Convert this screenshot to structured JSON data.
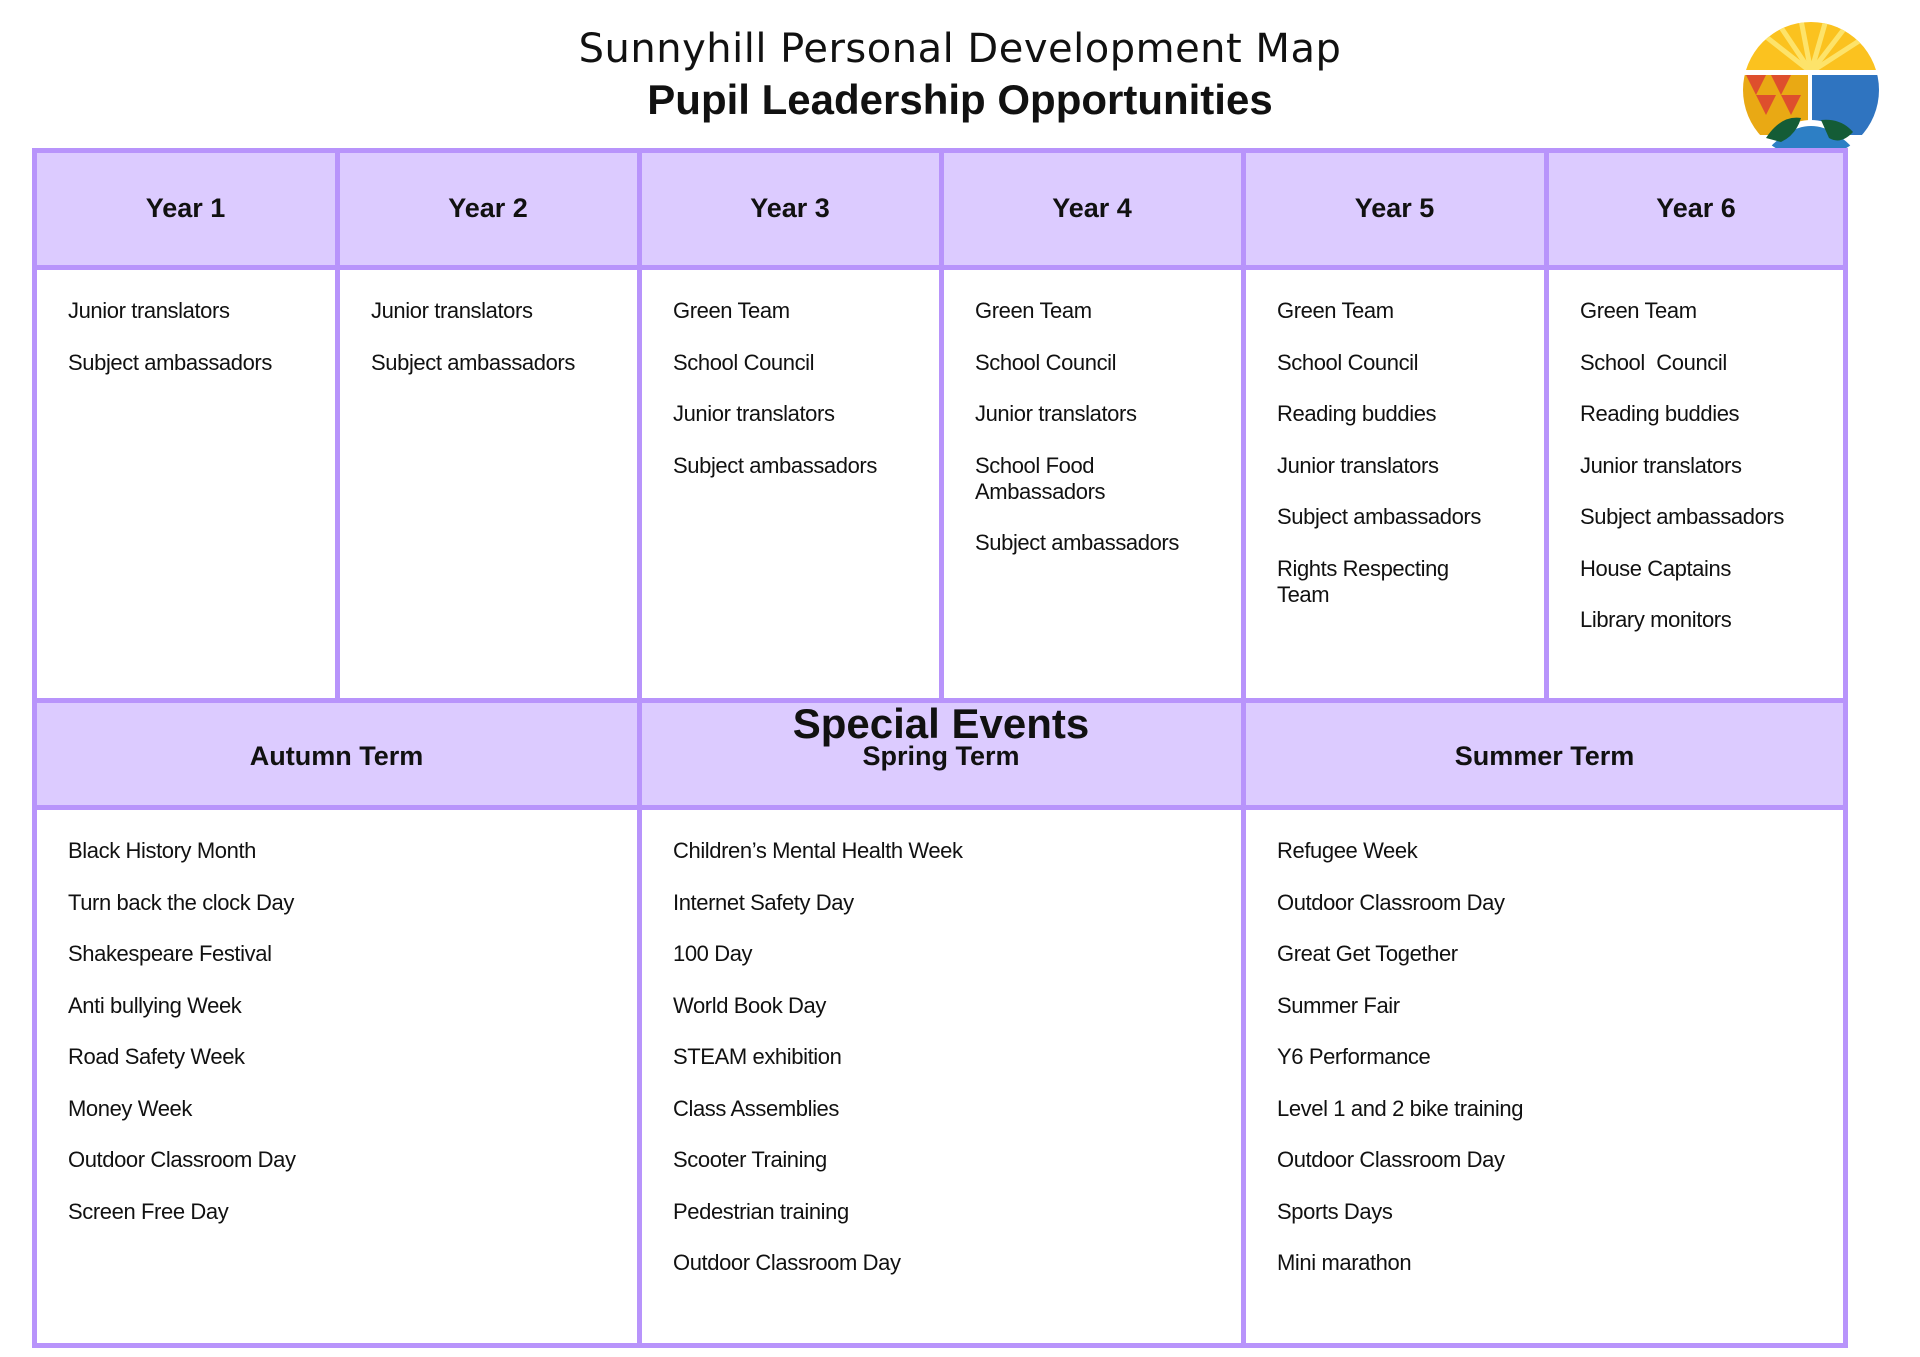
{
  "header": {
    "title": "Sunnyhill Personal Development Map",
    "subtitle": "Pupil Leadership Opportunities",
    "logo": "sunnyhill-logo"
  },
  "colors": {
    "border": "#b894fb",
    "header_fill": "#dccbff"
  },
  "years": [
    {
      "label": "Year 1",
      "items": [
        "Junior translators",
        "Subject ambassadors"
      ]
    },
    {
      "label": "Year 2",
      "items": [
        "Junior translators",
        "Subject ambassadors"
      ]
    },
    {
      "label": "Year 3",
      "items": [
        "Green Team",
        "School Council",
        "Junior translators",
        "Subject ambassadors"
      ]
    },
    {
      "label": "Year 4",
      "items": [
        "Green Team",
        "School Council",
        "Junior translators",
        "School Food Ambassadors",
        "Subject ambassadors"
      ]
    },
    {
      "label": "Year 5",
      "items": [
        "Green Team",
        "School Council",
        "Reading buddies",
        "Junior translators",
        "Subject ambassadors",
        "Rights Respecting Team"
      ]
    },
    {
      "label": "Year 6",
      "items": [
        "Green Team",
        "School  Council",
        "Reading buddies",
        "Junior translators",
        "Subject ambassadors",
        "House Captains",
        "Library monitors"
      ]
    }
  ],
  "special_events": {
    "title": "Special Events",
    "terms": [
      {
        "label": "Autumn Term",
        "items": [
          "Black History Month",
          "Turn back the clock Day",
          "Shakespeare Festival",
          "Anti bullying Week",
          "Road Safety Week",
          "Money Week",
          "Outdoor Classroom Day",
          "Screen Free Day"
        ]
      },
      {
        "label": "Spring Term",
        "items": [
          "Children’s Mental Health Week",
          "Internet Safety Day",
          "100 Day",
          "World Book Day",
          "STEAM exhibition",
          "Class Assemblies",
          "Scooter Training",
          "Pedestrian training",
          "Outdoor Classroom Day"
        ]
      },
      {
        "label": "Summer Term",
        "items": [
          "Refugee Week",
          "Outdoor Classroom Day",
          "Great Get Together",
          "Summer Fair",
          "Y6 Performance",
          "Level 1 and 2 bike training",
          "Outdoor Classroom Day",
          "Sports Days",
          "Mini marathon"
        ]
      }
    ]
  }
}
